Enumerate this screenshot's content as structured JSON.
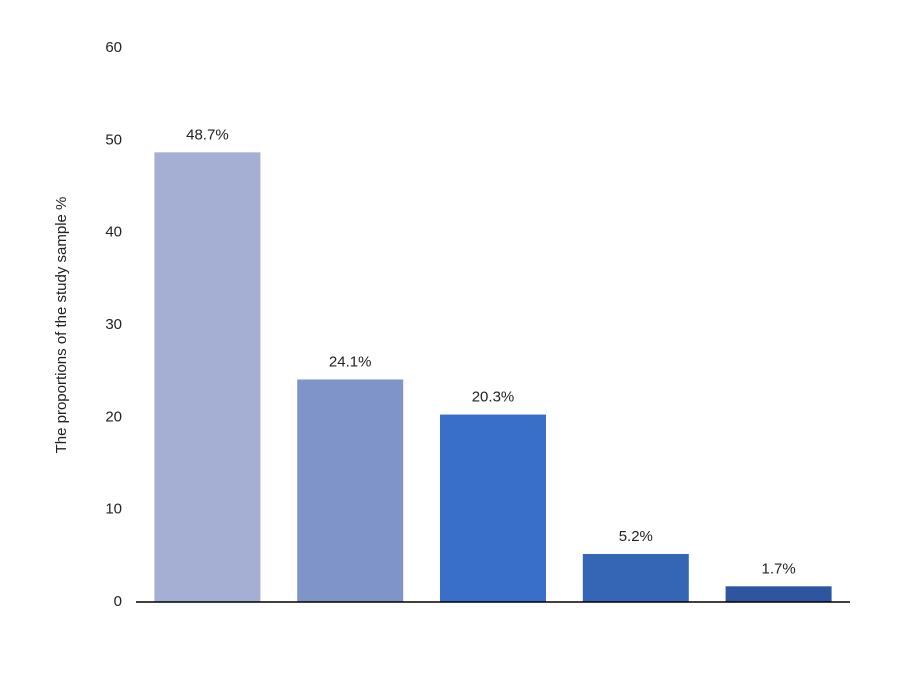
{
  "chart_data": {
    "type": "bar",
    "ylabel": "The proportions of the study sample %",
    "categories": [
      null,
      null,
      null,
      null,
      null
    ],
    "values": [
      48.7,
      24.1,
      20.3,
      5.2,
      1.7
    ],
    "value_labels": [
      "48.7%",
      "24.1%",
      "20.3%",
      "5.2%",
      "1.7%"
    ],
    "colors": [
      "#a5afd3",
      "#7f95c9",
      "#3a6fc9",
      "#3565b5",
      "#2f55a0"
    ],
    "ylim": [
      0,
      60
    ],
    "yticks": [
      0,
      10,
      20,
      30,
      40,
      50,
      60
    ],
    "grid": false
  }
}
